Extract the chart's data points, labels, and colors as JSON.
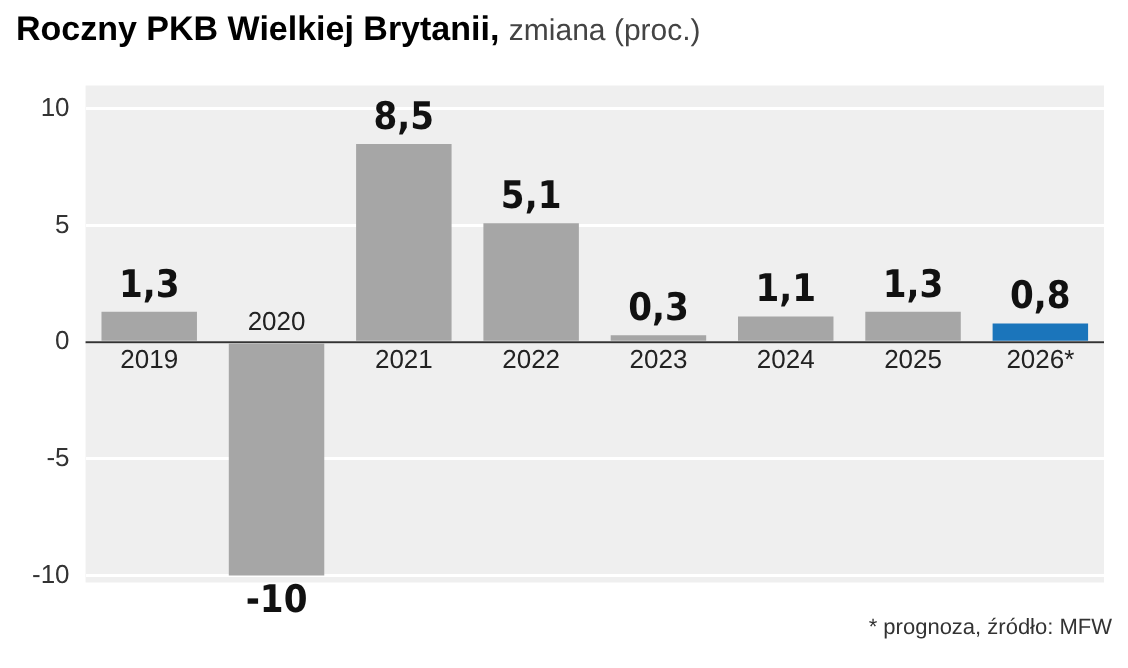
{
  "chart_data": {
    "type": "bar",
    "title": "Roczny PKB Wielkiej Brytanii,",
    "subtitle": "zmiana (proc.)",
    "categories": [
      "2019",
      "2020",
      "2021",
      "2022",
      "2023",
      "2024",
      "2025",
      "2026*"
    ],
    "values": [
      1.3,
      -10,
      8.5,
      5.1,
      0.3,
      1.1,
      1.3,
      0.8
    ],
    "colors": [
      "#a6a6a6",
      "#a6a6a6",
      "#a6a6a6",
      "#a6a6a6",
      "#a6a6a6",
      "#a6a6a6",
      "#a6a6a6",
      "#1b75bb"
    ],
    "value_labels": [
      "1,3",
      "-10",
      "8,5",
      "5,1",
      "0,3",
      "1,1",
      "1,3",
      "0,8"
    ],
    "ylim": [
      -10.3,
      11
    ],
    "yticks": [
      -10,
      -5,
      0,
      5,
      10
    ],
    "grid": "y",
    "annotations": [
      "* prognoza, źródło: MFW"
    ]
  }
}
